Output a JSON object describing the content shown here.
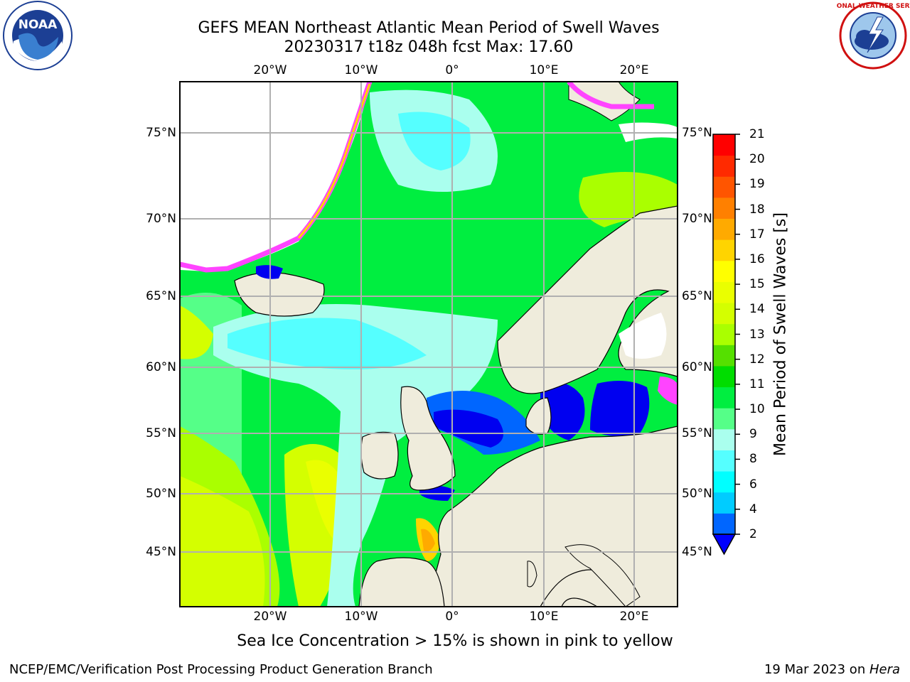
{
  "header": {
    "title_line1": "GEFS MEAN Northeast Atlantic Mean Period of Swell Waves",
    "title_line2": "20230317 t18z 048h fcst   Max: 17.60",
    "noaa_logo_text": "NOAA",
    "nws_logo_text": "NATIONAL WEATHER SERVICE"
  },
  "map": {
    "lon_labels_top": [
      "20°W",
      "10°W",
      "0°",
      "10°E",
      "20°E"
    ],
    "lon_labels_bottom": [
      "20°W",
      "10°W",
      "0°",
      "10°E",
      "20°E"
    ],
    "lat_labels_left": [
      "75°N",
      "70°N",
      "65°N",
      "60°N",
      "55°N",
      "50°N",
      "45°N"
    ],
    "lat_labels_right": [
      "75°N",
      "70°N",
      "65°N",
      "60°N",
      "55°N",
      "50°N",
      "45°N"
    ],
    "colors": {
      "land": "#efecdc",
      "ocean_low_period": "#0000f0",
      "sea_ice": "#ff44ff"
    }
  },
  "colorbar": {
    "label": "Mean Period of Swell Waves [s]",
    "ticks": [
      "21",
      "20",
      "19",
      "18",
      "17",
      "16",
      "15",
      "14",
      "13",
      "12",
      "11",
      "10",
      "9",
      "8",
      "6",
      "4",
      "2"
    ],
    "colors_top_to_bottom": [
      "#ff0000",
      "#ff2a00",
      "#ff5500",
      "#ff8000",
      "#ffaa00",
      "#ffd400",
      "#ffff00",
      "#eaff00",
      "#d4ff00",
      "#aaff00",
      "#55e000",
      "#00dd00",
      "#00ee40",
      "#55ff88",
      "#aaffee",
      "#55ffff",
      "#00ffff",
      "#00ccff",
      "#0066ff"
    ],
    "extend_color": "#0000ff"
  },
  "caption": "Sea Ice Concentration > 15% is shown in pink to yellow",
  "footer": {
    "left": "NCEP/EMC/Verification Post Processing Product Generation Branch",
    "right_date": "19 Mar 2023 on ",
    "right_machine": "Hera"
  }
}
